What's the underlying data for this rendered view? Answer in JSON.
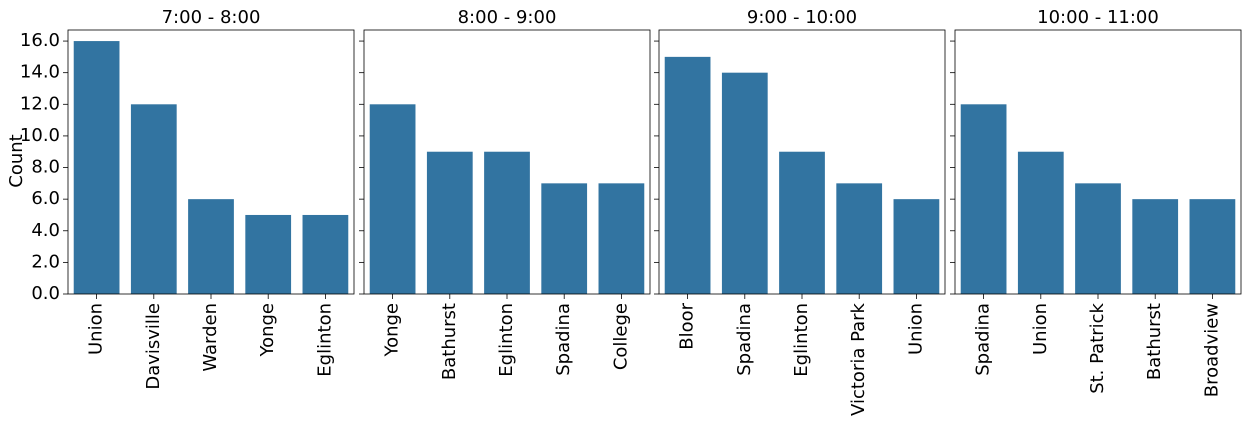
{
  "figure": {
    "ylabel": "Count",
    "bar_color": "#3274a1",
    "y_ticks": [
      "0.0",
      "2.0",
      "4.0",
      "6.0",
      "8.0",
      "10.0",
      "12.0",
      "14.0",
      "16.0"
    ]
  },
  "chart_data": [
    {
      "type": "bar",
      "title": "7:00 - 8:00",
      "categories": [
        "Union",
        "Davisville",
        "Warden",
        "Yonge",
        "Eglinton"
      ],
      "values": [
        16,
        12,
        6,
        5,
        5
      ],
      "ylabel": "Count",
      "ylim": [
        0,
        16.7
      ],
      "grid": false
    },
    {
      "type": "bar",
      "title": "8:00 - 9:00",
      "categories": [
        "Yonge",
        "Bathurst",
        "Eglinton",
        "Spadina",
        "College"
      ],
      "values": [
        12,
        9,
        9,
        7,
        7
      ],
      "ylim": [
        0,
        16.7
      ],
      "grid": false
    },
    {
      "type": "bar",
      "title": "9:00 - 10:00",
      "categories": [
        "Bloor",
        "Spadina",
        "Eglinton",
        "Victoria Park",
        "Union"
      ],
      "values": [
        15,
        14,
        9,
        7,
        6
      ],
      "ylim": [
        0,
        16.7
      ],
      "grid": false
    },
    {
      "type": "bar",
      "title": "10:00 - 11:00",
      "categories": [
        "Spadina",
        "Union",
        "St. Patrick",
        "Bathurst",
        "Broadview"
      ],
      "values": [
        12,
        9,
        7,
        6,
        6
      ],
      "ylim": [
        0,
        16.7
      ],
      "grid": false
    }
  ]
}
